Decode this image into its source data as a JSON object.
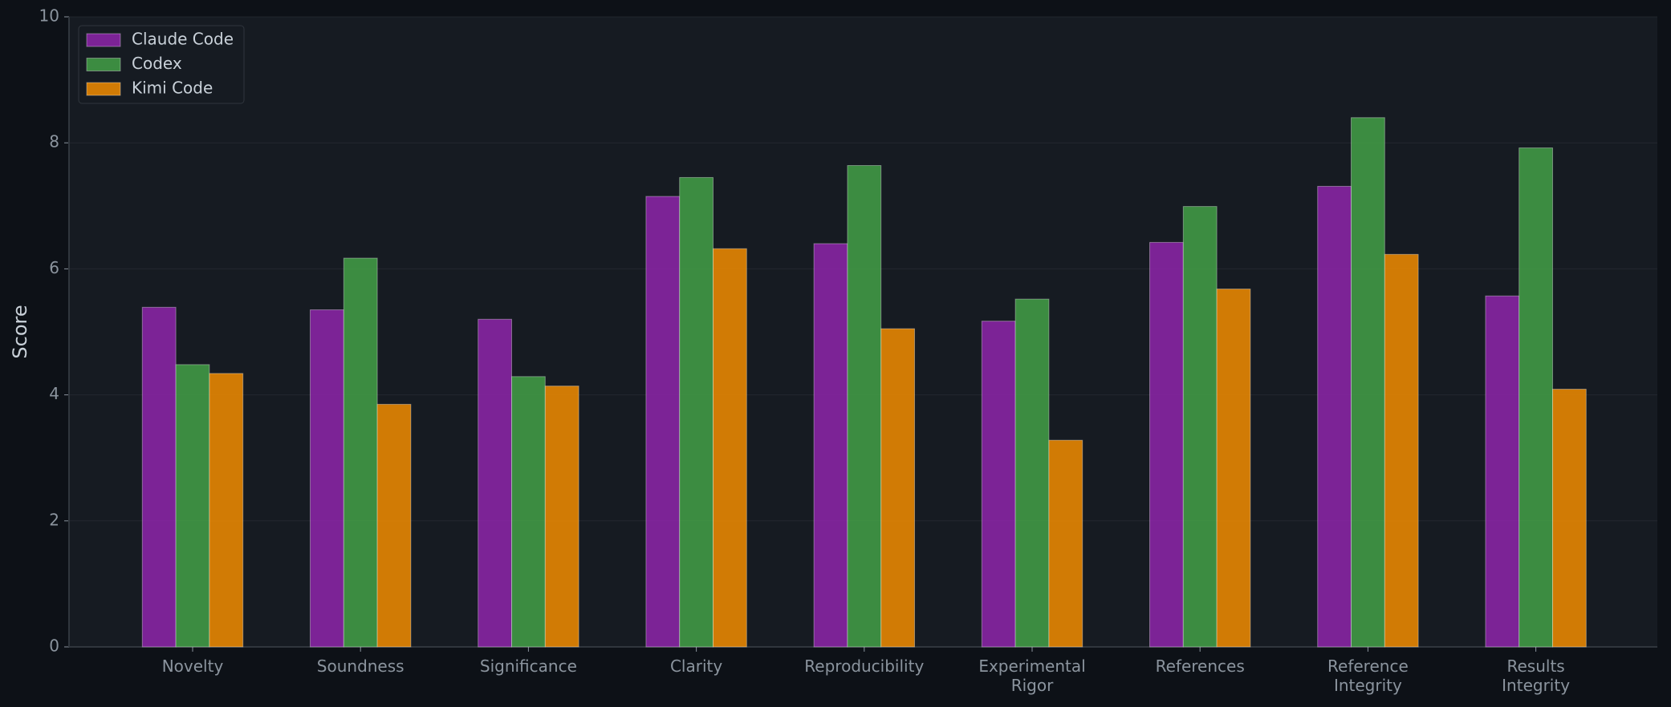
{
  "chart_data": {
    "type": "bar",
    "y_label": "Score",
    "categories": [
      "Novelty",
      "Soundness",
      "Significance",
      "Clarity",
      "Reproducibility",
      "Experimental\nRigor",
      "References",
      "Reference\nIntegrity",
      "Results\nIntegrity"
    ],
    "series": [
      {
        "name": "Claude Code",
        "color": "#8e24aa",
        "values": [
          5.39,
          5.35,
          5.2,
          7.15,
          6.4,
          5.17,
          6.42,
          7.31,
          5.57
        ]
      },
      {
        "name": "Codex",
        "color": "#43a047",
        "values": [
          4.48,
          6.17,
          4.29,
          7.45,
          7.64,
          5.52,
          6.99,
          8.4,
          7.92
        ]
      },
      {
        "name": "Kimi Code",
        "color": "#f28c00",
        "values": [
          4.34,
          3.85,
          4.14,
          6.32,
          5.05,
          3.28,
          5.68,
          6.23,
          4.09
        ]
      }
    ],
    "ylim": [
      0,
      10
    ],
    "yticks": [
      0,
      2,
      4,
      6,
      8,
      10
    ],
    "grid": true,
    "legend": "upper-left"
  }
}
